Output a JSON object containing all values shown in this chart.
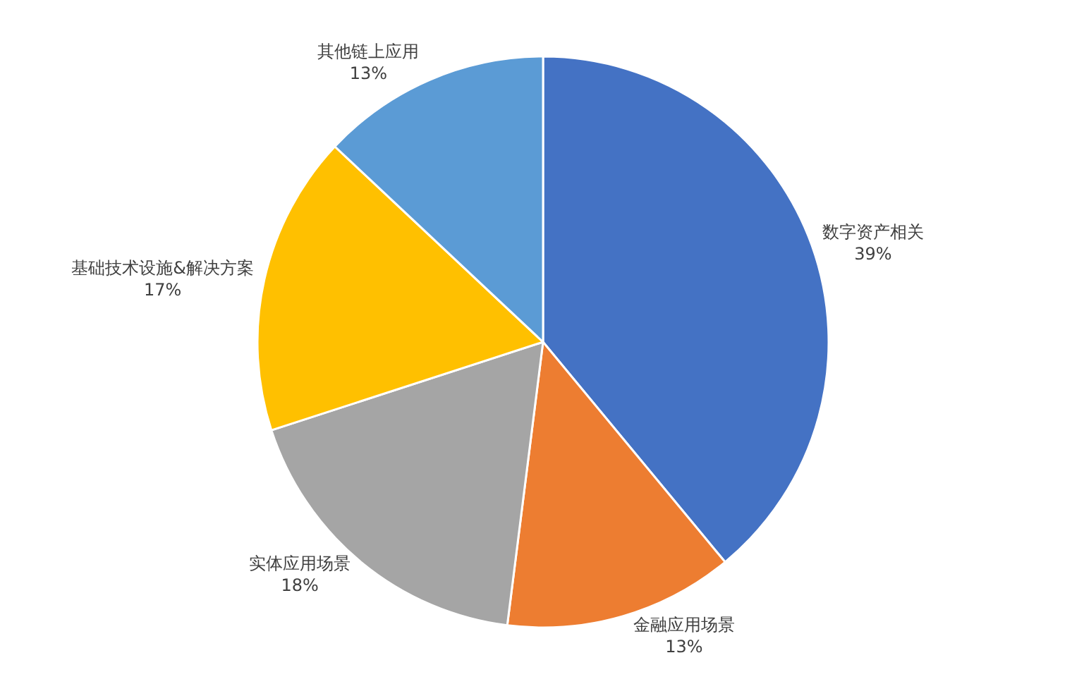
{
  "chart_data": {
    "type": "pie",
    "categories": [
      "数字资产相关",
      "金融应用场景",
      "实体应用场景",
      "基础技术设施&解决方案",
      "其他链上应用"
    ],
    "values": [
      39,
      13,
      18,
      17,
      13
    ],
    "value_labels": [
      "39%",
      "13%",
      "18%",
      "17%",
      "13%"
    ],
    "colors": [
      "#4472c4",
      "#ed7d31",
      "#a5a5a5",
      "#ffc000",
      "#5b9bd5"
    ],
    "legend": false
  }
}
